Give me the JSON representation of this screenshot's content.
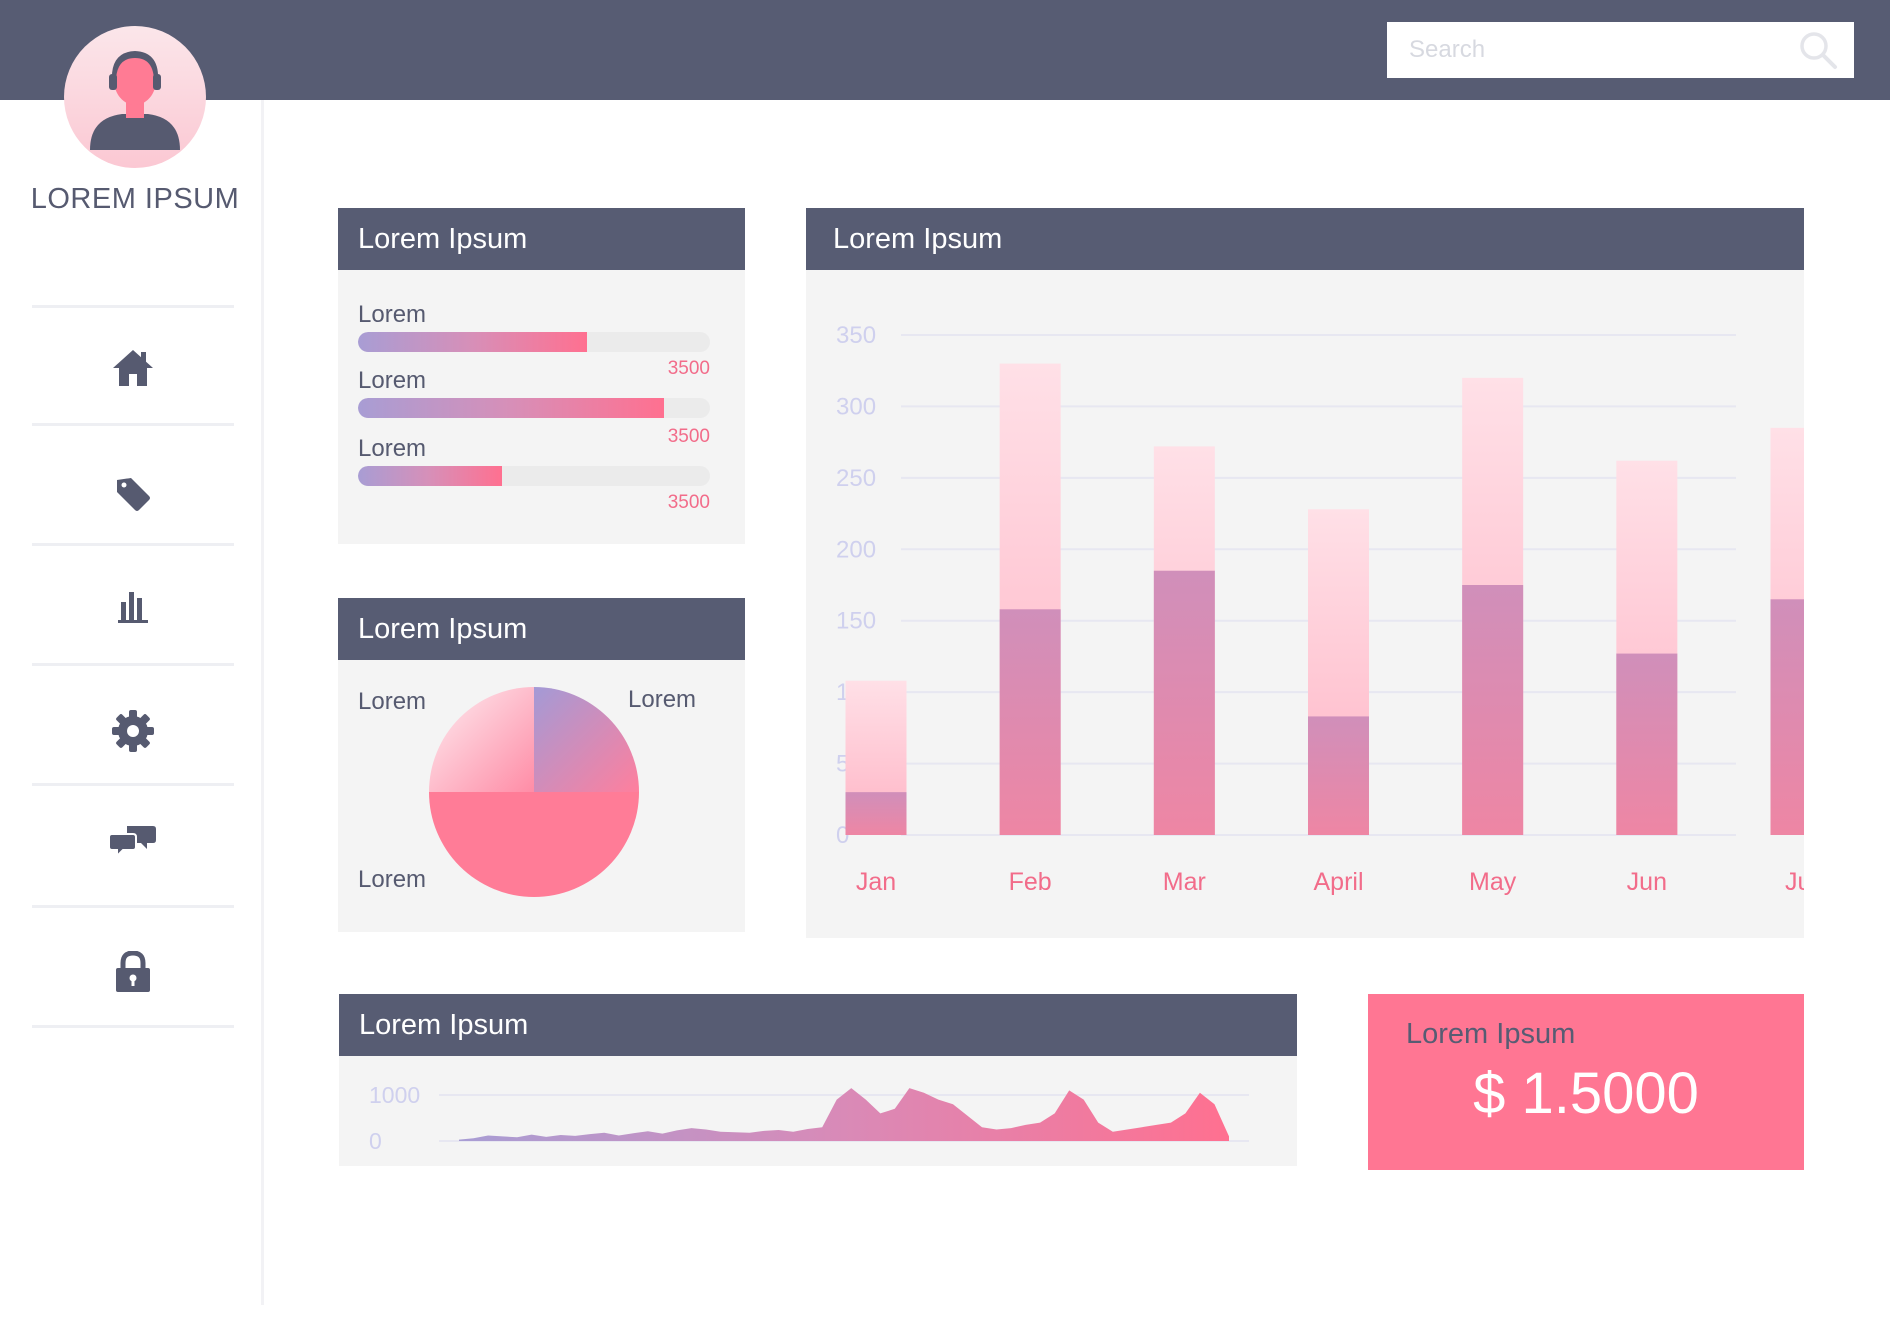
{
  "search": {
    "placeholder": "Search"
  },
  "profile": {
    "name": "LOREM IPSUM"
  },
  "nav": {
    "items": [
      "home-icon",
      "tag-icon",
      "bar-chart-icon",
      "gear-icon",
      "chat-icon",
      "lock-icon"
    ]
  },
  "progress_card": {
    "title": "Lorem Ipsum",
    "items": [
      {
        "label": "Lorem",
        "value": "3500",
        "fraction": 0.65
      },
      {
        "label": "Lorem",
        "value": "3500",
        "fraction": 0.87
      },
      {
        "label": "Lorem",
        "value": "3500",
        "fraction": 0.41
      }
    ]
  },
  "pie_card": {
    "title": "Lorem Ipsum",
    "labels": [
      "Lorem",
      "Lorem",
      "Lorem"
    ]
  },
  "bar_card": {
    "title": "Lorem Ipsum"
  },
  "area_card": {
    "title": "Lorem Ipsum"
  },
  "kpi": {
    "label": "Lorem Ipsum",
    "value": "$ 1.5000"
  },
  "colors": {
    "header": "#575c73",
    "accent": "#ff7693",
    "value_text": "#f26c8a",
    "axis_text": "#cfd0ee",
    "card_bg": "#f4f4f4",
    "bar_light": "#ffc7d4",
    "bar_dark": "#e08ab2",
    "gradient_start": "#a89dd4",
    "gradient_end": "#ff7090"
  },
  "chart_data": [
    {
      "type": "bar",
      "stacked": true,
      "categories": [
        "Jan",
        "Feb",
        "Mar",
        "April",
        "May",
        "Jun",
        "Jul"
      ],
      "series": [
        {
          "values": [
            30,
            158,
            185,
            83,
            175,
            127,
            165
          ]
        },
        {
          "values": [
            78,
            172,
            87,
            145,
            145,
            135,
            120
          ]
        }
      ],
      "yticks": [
        0,
        50,
        100,
        150,
        200,
        250,
        300,
        350
      ],
      "ylim": [
        0,
        350
      ],
      "grid": true
    },
    {
      "type": "pie",
      "slices": [
        {
          "label": "Lorem",
          "value": 25
        },
        {
          "label": "Lorem",
          "value": 25
        },
        {
          "label": "Lorem",
          "value": 50
        }
      ]
    },
    {
      "type": "area",
      "yticks": [
        0,
        1000
      ],
      "ylim": [
        0,
        1000
      ],
      "grid": true,
      "values": [
        30,
        60,
        120,
        100,
        80,
        140,
        90,
        130,
        110,
        150,
        180,
        120,
        170,
        210,
        160,
        230,
        280,
        250,
        200,
        190,
        180,
        220,
        240,
        200,
        260,
        300,
        900,
        1150,
        900,
        600,
        700,
        1150,
        1050,
        900,
        800,
        550,
        300,
        250,
        280,
        350,
        400,
        600,
        1100,
        900,
        400,
        200,
        250,
        300,
        350,
        400,
        600,
        1050,
        800,
        100
      ]
    }
  ]
}
